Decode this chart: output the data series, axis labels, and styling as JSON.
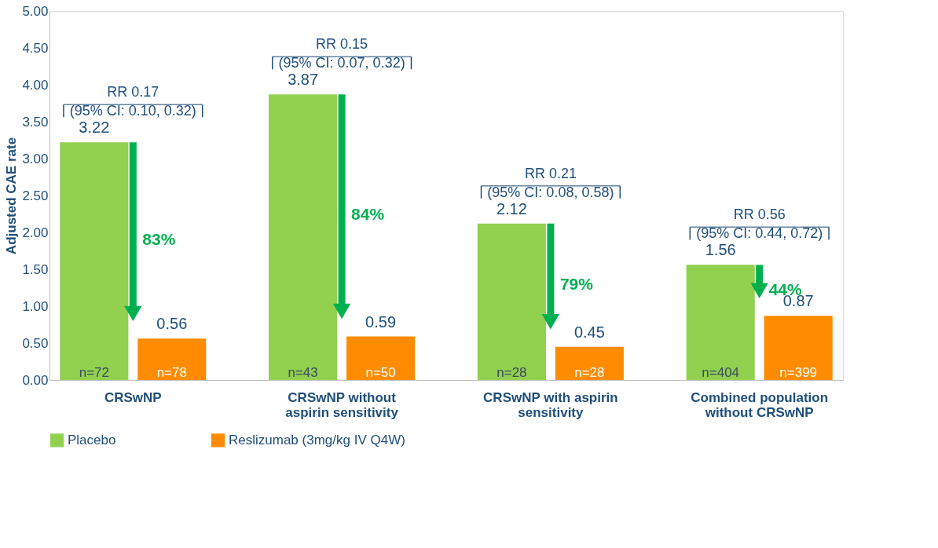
{
  "chart_data": {
    "type": "bar",
    "ylabel": "Adjusted CAE rate",
    "categories": [
      "CRSwNP",
      "CRSwNP without\naspirin sensitivity",
      "CRSwNP with aspirin\nsensitivity",
      "Combined population\nwithout CRSwNP"
    ],
    "series": [
      {
        "name": "Placebo",
        "color": "#92d050",
        "values": [
          3.22,
          3.87,
          2.12,
          1.56
        ]
      },
      {
        "name": "Reslizumab (3mg/kg IV Q4W)",
        "color": "#ff8c00",
        "values": [
          0.56,
          0.59,
          0.45,
          0.87
        ]
      }
    ],
    "ylim": [
      0,
      5
    ],
    "yticks": [
      {
        "value": 0,
        "label": "0.00"
      },
      {
        "value": 0.5,
        "label": "0.50"
      },
      {
        "value": 1,
        "label": "1.00"
      },
      {
        "value": 1.5,
        "label": "1.50"
      },
      {
        "value": 2,
        "label": "2.00"
      },
      {
        "value": 2.5,
        "label": "2.50"
      },
      {
        "value": 3,
        "label": "3.00"
      },
      {
        "value": 3.5,
        "label": "3.50"
      },
      {
        "value": 4,
        "label": "4.00"
      },
      {
        "value": 4.5,
        "label": "4.50"
      },
      {
        "value": 5,
        "label": "5.00"
      }
    ],
    "data_labels": true,
    "grid": false,
    "legend": "bottom",
    "annotations": [
      "RR 0.17\n(95% CI: 0.10, 0.32)",
      "RR 0.15\n(95% CI: 0.07, 0.32)",
      "RR 0.21\n(95% CI: 0.08, 0.58)",
      "RR 0.56\n(95% CI: 0.44, 0.72)",
      "83%",
      "84%",
      "79%",
      "44%",
      "n=72",
      "n=78",
      "n=43",
      "n=50",
      "n=28",
      "n=28",
      "n=404",
      "n=399"
    ]
  }
}
